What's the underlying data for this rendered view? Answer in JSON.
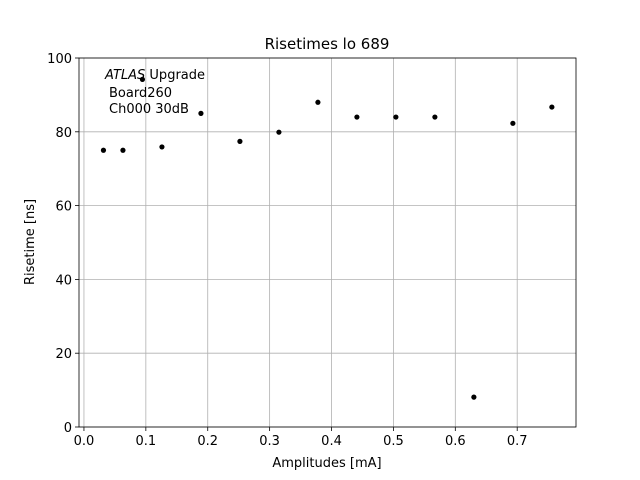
{
  "chart_data": {
    "type": "scatter",
    "title": "Risetimes lo 689",
    "x_label": "Amplitudes [mA]",
    "y_label": "Risetime [ns]",
    "annotation": {
      "italic": "ATLAS",
      "rest": "Upgrade",
      "line2": "Board260",
      "line3": "Ch000 30dB"
    },
    "x": [
      0.0315,
      0.063,
      0.0945,
      0.126,
      0.189,
      0.252,
      0.315,
      0.378,
      0.441,
      0.504,
      0.567,
      0.63,
      0.693,
      0.756
    ],
    "values": [
      75,
      75,
      94.2,
      75.9,
      85,
      77.4,
      79.9,
      88,
      84,
      84,
      84,
      8.1,
      82.3,
      86.7
    ],
    "color": "#000000",
    "xlim": [
      -0.008,
      0.795
    ],
    "ylim": [
      0,
      100
    ],
    "xticks": [
      {
        "value": 0,
        "label": "0.0"
      },
      0.1,
      0.2,
      0.3,
      0.4,
      0.5,
      0.6,
      0.7
    ],
    "yticks": [
      0,
      20,
      40,
      60,
      80,
      100
    ],
    "grid": true
  }
}
